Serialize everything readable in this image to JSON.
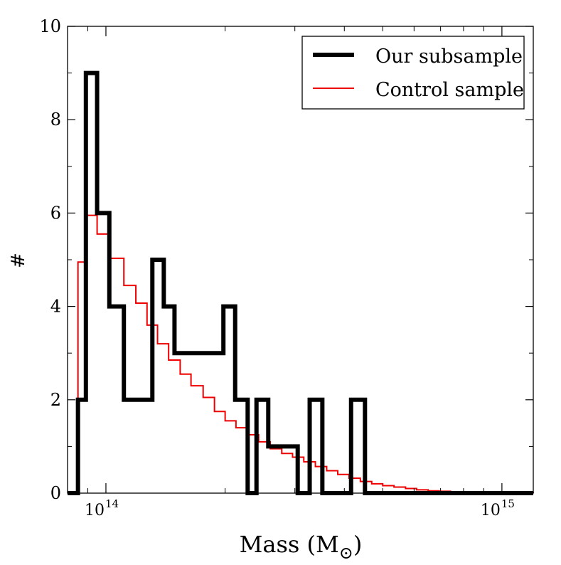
{
  "chart_data": {
    "type": "histogram-step",
    "x_scale": "log",
    "xlim": [
      80000000000000,
      1200000000000000
    ],
    "ylim": [
      0,
      10
    ],
    "xlabel": "Mass (M",
    "xlabel_sub": "⊙",
    "xlabel_close": ")",
    "ylabel": "#",
    "y_ticks": [
      0,
      2,
      4,
      6,
      8,
      10
    ],
    "y_tick_labels": [
      "0",
      "2",
      "4",
      "6",
      "8",
      "10"
    ],
    "x_major_ticks": [
      {
        "value": 100000000000000,
        "base": "10",
        "exp": "14"
      },
      {
        "value": 1000000000000000,
        "base": "10",
        "exp": "15"
      }
    ],
    "x_minor_ticks": [
      90000000000000,
      200000000000000,
      300000000000000,
      400000000000000,
      500000000000000,
      600000000000000,
      700000000000000,
      800000000000000,
      900000000000000
    ],
    "y_minor_ticks": [
      1,
      3,
      5,
      7,
      9
    ],
    "legend_position": "top-right",
    "series": [
      {
        "name": "Our subsample",
        "color": "#000000",
        "style": "thick",
        "edges": [
          80000000000000,
          85000000000000,
          89000000000000,
          95000000000000,
          102000000000000,
          111000000000000,
          123000000000000,
          131000000000000,
          140000000000000,
          149000000000000,
          173000000000000,
          183000000000000,
          198000000000000,
          212000000000000,
          228000000000000,
          240000000000000,
          257000000000000,
          278000000000000,
          305000000000000,
          327000000000000,
          352000000000000,
          382000000000000,
          416000000000000,
          451000000000000,
          1200000000000000
        ],
        "values": [
          0,
          2,
          9,
          6,
          4,
          2,
          2,
          5,
          4,
          3,
          3,
          3,
          4,
          2,
          0,
          2,
          1,
          1,
          0,
          2,
          0,
          0,
          2,
          0
        ]
      },
      {
        "name": "Control sample",
        "color": "#ee0000",
        "style": "thin",
        "edges": [
          80000000000000,
          85000000000000,
          89000000000000,
          95000000000000,
          102000000000000,
          111000000000000,
          119000000000000,
          127000000000000,
          135000000000000,
          144000000000000,
          154000000000000,
          164000000000000,
          176000000000000,
          188000000000000,
          200000000000000,
          213000000000000,
          228000000000000,
          243000000000000,
          260000000000000,
          278000000000000,
          296000000000000,
          316000000000000,
          338000000000000,
          361000000000000,
          385000000000000,
          411000000000000,
          439000000000000,
          469000000000000,
          500000000000000,
          534000000000000,
          571000000000000,
          609000000000000,
          651000000000000,
          695000000000000,
          742000000000000,
          792000000000000,
          846000000000000,
          903000000000000,
          965000000000000,
          1030000000000000,
          1100000000000000,
          1200000000000000
        ],
        "values": [
          0,
          4.95,
          5.95,
          5.55,
          5.03,
          4.45,
          4.07,
          3.6,
          3.2,
          2.85,
          2.55,
          2.3,
          2.05,
          1.75,
          1.55,
          1.4,
          1.25,
          1.1,
          0.95,
          0.85,
          0.77,
          0.67,
          0.57,
          0.48,
          0.4,
          0.32,
          0.25,
          0.2,
          0.16,
          0.13,
          0.1,
          0.07,
          0.05,
          0.04,
          0.03,
          0.02,
          0.02,
          0.01,
          0.01,
          0.01,
          0.005
        ]
      }
    ]
  }
}
